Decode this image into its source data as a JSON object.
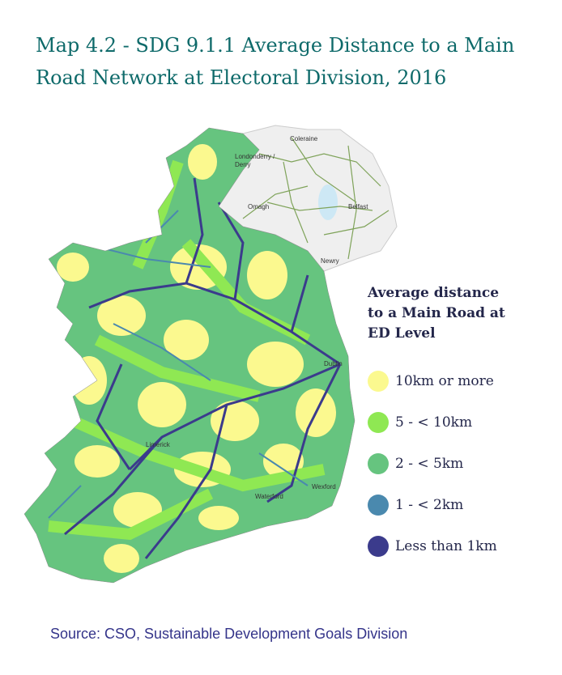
{
  "title": "Map 4.2 - SDG 9.1.1 Average Distance to a Main Road Network at Electoral Division, 2016",
  "legend": {
    "title": "Average distance to a Main Road at ED Level",
    "items": [
      {
        "label": "10km or more",
        "color": "#fbf98f"
      },
      {
        "label": "5 - < 10km",
        "color": "#8fe853"
      },
      {
        "label": "2 - < 5km",
        "color": "#66c47f"
      },
      {
        "label": "1 - < 2km",
        "color": "#4a89ae"
      },
      {
        "label": "Less than 1km",
        "color": "#3b3b8c"
      }
    ]
  },
  "places": [
    "Coleraine",
    "Londonderry /",
    "Derry",
    "Omagh",
    "Belfast",
    "Newry",
    "Dublin",
    "Limerick",
    "Waterford",
    "Wexford"
  ],
  "source": "Source: CSO, Sustainable Development Goals Division"
}
